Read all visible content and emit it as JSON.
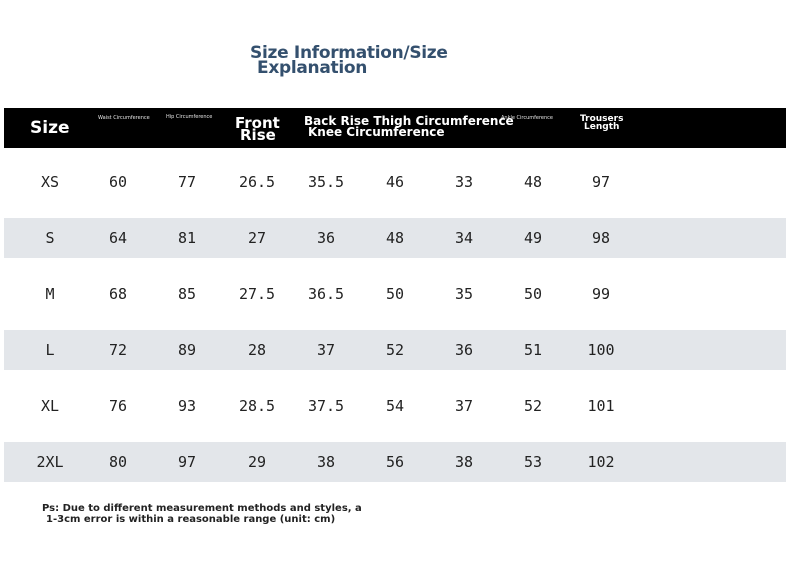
{
  "title": {
    "line1": "Size Information/Size",
    "line2": "Explanation"
  },
  "header": {
    "size": "Size",
    "waist": "Waist Circumference",
    "hip": "Hip Circumference",
    "front_rise_1": "Front",
    "front_rise_2": "Rise",
    "back_line1": "Back Rise Thigh Circumference",
    "back_line2": "Knee Circumference",
    "ankle": "Ankle Circumference",
    "trousers_1": "Trousers",
    "trousers_2": "Length"
  },
  "rows": [
    {
      "size": "XS",
      "values": [
        "60",
        "77",
        "26.5",
        "35.5",
        "46",
        "33",
        "48",
        "97"
      ]
    },
    {
      "size": "S",
      "values": [
        "64",
        "81",
        "27",
        "36",
        "48",
        "34",
        "49",
        "98"
      ]
    },
    {
      "size": "M",
      "values": [
        "68",
        "85",
        "27.5",
        "36.5",
        "50",
        "35",
        "50",
        "99"
      ]
    },
    {
      "size": "L",
      "values": [
        "72",
        "89",
        "28",
        "37",
        "52",
        "36",
        "51",
        "100"
      ]
    },
    {
      "size": "XL",
      "values": [
        "76",
        "93",
        "28.5",
        "37.5",
        "54",
        "37",
        "52",
        "101"
      ]
    },
    {
      "size": "2XL",
      "values": [
        "80",
        "97",
        "29",
        "38",
        "56",
        "38",
        "53",
        "102"
      ]
    }
  ],
  "note": {
    "line1": "Ps: Due to different measurement methods and styles, a",
    "line2": "1-3cm error is within a reasonable range (unit: cm)"
  },
  "colors": {
    "title": "#34506e",
    "header_bg": "#000000",
    "row_shade": "#e3e6ea"
  }
}
